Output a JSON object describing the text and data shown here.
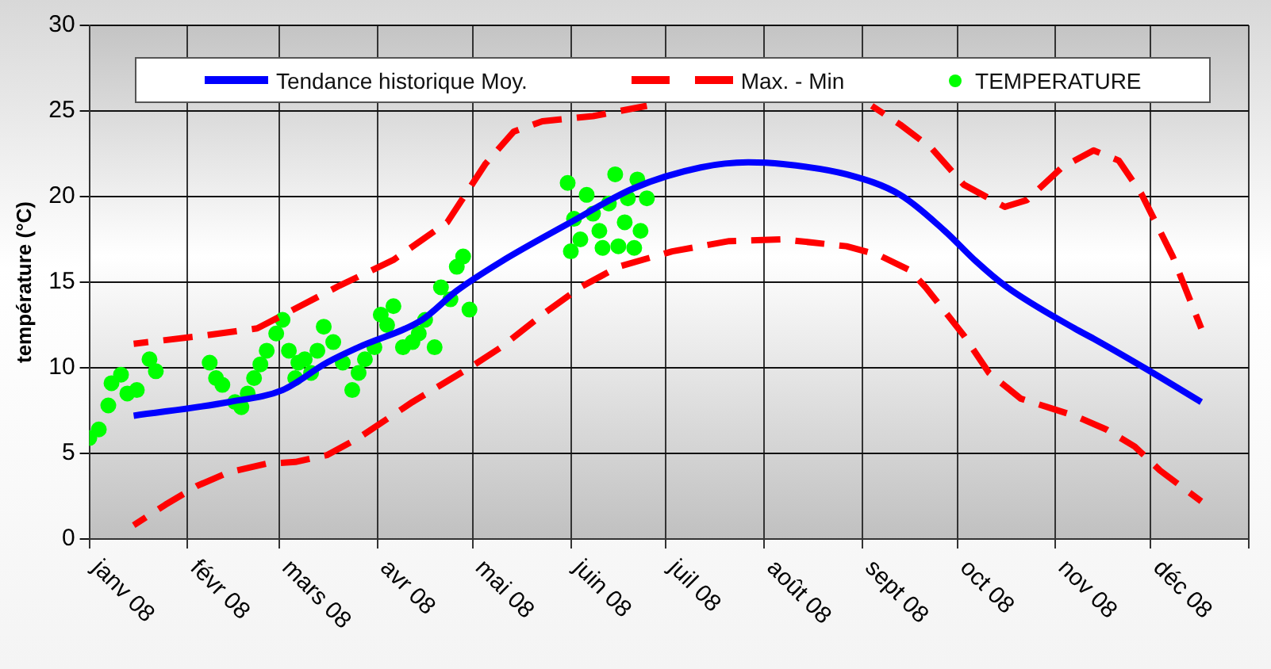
{
  "chart_data": {
    "type": "line",
    "ylabel": "température (°C)",
    "xlim": [
      "2008-01-01",
      "2009-01-01"
    ],
    "xticks": [
      {
        "value": "2008-01-01",
        "label": "janv 08"
      },
      {
        "value": "2008-02-01",
        "label": "févr 08"
      },
      {
        "value": "2008-03-01",
        "label": "mars 08"
      },
      {
        "value": "2008-04-01",
        "label": "avr 08"
      },
      {
        "value": "2008-05-01",
        "label": "mai 08"
      },
      {
        "value": "2008-06-01",
        "label": "juin 08"
      },
      {
        "value": "2008-07-01",
        "label": "juil 08"
      },
      {
        "value": "2008-08-01",
        "label": "août 08"
      },
      {
        "value": "2008-09-01",
        "label": "sept 08"
      },
      {
        "value": "2008-10-01",
        "label": "oct 08"
      },
      {
        "value": "2008-11-01",
        "label": "nov 08"
      },
      {
        "value": "2008-12-01",
        "label": "déc 08"
      },
      {
        "value": "2009-01-01",
        "label": null
      }
    ],
    "ylim": [
      0,
      30
    ],
    "yticks": [
      0,
      5,
      10,
      15,
      20,
      25,
      30
    ],
    "grid": true,
    "legend": "top",
    "series": [
      {
        "name": "Tendance historique Moy.",
        "type": "line",
        "line_style": "solid",
        "marker": "none",
        "color": "#0000ff",
        "x": [
          "2008-01-15",
          "2008-02-14",
          "2008-03-02",
          "2008-03-16",
          "2008-03-26",
          "2008-04-15",
          "2008-04-26",
          "2008-05-10",
          "2008-05-31",
          "2008-06-21",
          "2008-07-12",
          "2008-07-27",
          "2008-08-07",
          "2008-08-27",
          "2008-09-13",
          "2008-09-27",
          "2008-10-07",
          "2008-10-16",
          "2008-11-07",
          "2008-11-13",
          "2008-11-29",
          "2008-12-17"
        ],
        "values": [
          7.2,
          8.0,
          8.7,
          10.3,
          11.2,
          12.8,
          14.5,
          16.2,
          18.4,
          20.5,
          21.7,
          22.0,
          21.9,
          21.3,
          20.1,
          18.0,
          16.2,
          14.8,
          12.3,
          11.7,
          10.0,
          8.0
        ]
      },
      {
        "name": "Max. - Min",
        "type": "line",
        "line_style": "dashed",
        "marker": "none",
        "color": "#ff0000",
        "x": [
          "2008-01-15",
          "2008-02-07",
          "2008-02-23",
          "2008-03-20",
          "2008-04-06",
          "2008-04-23",
          "2008-05-05",
          "2008-05-14",
          "2008-05-23",
          "2008-06-08",
          "2008-06-25",
          "2008-07-20",
          "2008-09-04",
          "2008-09-13",
          "2008-09-23",
          "2008-10-03",
          "2008-10-16",
          "2008-10-23",
          "2008-11-03",
          "2008-11-13",
          "2008-11-21",
          "2008-11-28",
          "2008-12-08",
          "2008-12-17"
        ],
        "values": [
          11.4,
          11.9,
          12.3,
          14.8,
          16.3,
          18.5,
          21.9,
          23.8,
          24.4,
          24.7,
          25.3,
          null,
          25.3,
          24.2,
          22.8,
          20.7,
          19.4,
          19.8,
          21.7,
          22.7,
          22.1,
          20.2,
          16.5,
          12.3
        ]
      },
      {
        "type": "line",
        "line_style": "dashed",
        "marker": "none",
        "color": "#ff0000",
        "x": [
          "2008-01-15",
          "2008-01-25",
          "2008-02-04",
          "2008-02-14",
          "2008-02-26",
          "2008-03-06",
          "2008-03-16",
          "2008-03-26",
          "2008-04-12",
          "2008-04-30",
          "2008-05-10",
          "2008-05-23",
          "2008-06-04",
          "2008-06-16",
          "2008-07-03",
          "2008-07-21",
          "2008-08-07",
          "2008-08-27",
          "2008-09-06",
          "2008-09-16",
          "2008-09-21",
          "2008-10-03",
          "2008-10-11",
          "2008-10-21",
          "2008-11-07",
          "2008-11-17",
          "2008-11-26",
          "2008-12-04",
          "2008-12-17"
        ],
        "values": [
          0.8,
          2.0,
          3.1,
          3.9,
          4.4,
          4.5,
          4.9,
          5.9,
          8.0,
          10.0,
          11.2,
          13.1,
          14.7,
          15.9,
          16.8,
          17.4,
          17.5,
          17.1,
          16.6,
          15.7,
          14.7,
          11.9,
          9.7,
          8.2,
          7.2,
          6.4,
          5.4,
          4.0,
          2.2
        ]
      },
      {
        "name": "TEMPERATURE",
        "type": "scatter",
        "marker": "circle",
        "color": "#00ff00",
        "x": [
          "2008-01-01",
          "2008-01-04",
          "2008-01-07",
          "2008-01-08",
          "2008-01-11",
          "2008-01-13",
          "2008-01-16",
          "2008-01-20",
          "2008-01-22",
          "2008-02-08",
          "2008-02-10",
          "2008-02-12",
          "2008-02-16",
          "2008-02-18",
          "2008-02-20",
          "2008-02-22",
          "2008-02-24",
          "2008-02-26",
          "2008-02-29",
          "2008-03-02",
          "2008-03-04",
          "2008-03-06",
          "2008-03-07",
          "2008-03-09",
          "2008-03-11",
          "2008-03-13",
          "2008-03-15",
          "2008-03-18",
          "2008-03-21",
          "2008-03-24",
          "2008-03-26",
          "2008-03-28",
          "2008-03-31",
          "2008-04-02",
          "2008-04-04",
          "2008-04-06",
          "2008-04-09",
          "2008-04-12",
          "2008-04-14",
          "2008-04-16",
          "2008-04-19",
          "2008-04-21",
          "2008-04-24",
          "2008-04-26",
          "2008-04-28",
          "2008-04-30",
          "2008-05-31",
          "2008-06-01",
          "2008-06-02",
          "2008-06-04",
          "2008-06-06",
          "2008-06-08",
          "2008-06-10",
          "2008-06-11",
          "2008-06-13",
          "2008-06-15",
          "2008-06-16",
          "2008-06-18",
          "2008-06-19",
          "2008-06-21",
          "2008-06-22",
          "2008-06-23",
          "2008-06-25"
        ],
        "values": [
          5.9,
          6.4,
          7.8,
          9.1,
          9.6,
          8.5,
          8.7,
          10.5,
          9.8,
          10.3,
          9.4,
          9.0,
          8.0,
          7.7,
          8.5,
          9.4,
          10.2,
          11.0,
          12.0,
          12.8,
          11.0,
          9.4,
          10.3,
          10.5,
          9.7,
          11.0,
          12.4,
          11.5,
          10.3,
          8.7,
          9.7,
          10.5,
          11.2,
          13.1,
          12.5,
          13.6,
          11.2,
          11.5,
          12.0,
          12.8,
          11.2,
          14.7,
          14.0,
          15.9,
          16.5,
          13.4,
          20.8,
          16.8,
          18.7,
          17.5,
          20.1,
          19.0,
          18.0,
          17.0,
          19.6,
          21.3,
          17.1,
          18.5,
          19.9,
          17.0,
          21.0,
          18.0,
          19.9
        ]
      }
    ]
  }
}
